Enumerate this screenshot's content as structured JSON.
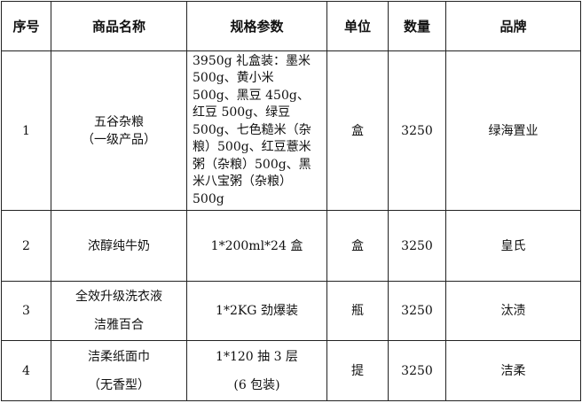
{
  "table": {
    "headers": [
      "序号",
      "商品名称",
      "规格参数",
      "单位",
      "数量",
      "品牌"
    ],
    "rows": [
      {
        "no": "1",
        "name": [
          "五谷杂粮",
          "（一级产品）"
        ],
        "spec": "3950g 礼盒装：墨米 500g、黄小米 500g、黑豆 450g、红豆 500g、绿豆 500g、七色糙米（杂粮）500g、红豆薏米粥（杂粮）500g、黑米八宝粥（杂粮）500g",
        "unit": "盒",
        "qty": "3250",
        "brand": "绿海置业"
      },
      {
        "no": "2",
        "name": [
          "浓醇纯牛奶"
        ],
        "spec": "1*200ml*24 盒",
        "unit": "盒",
        "qty": "3250",
        "brand": "皇氏"
      },
      {
        "no": "3",
        "name": [
          "全效升级洗衣液",
          "洁雅百合"
        ],
        "spec": "1*2KG 劲爆装",
        "unit": "瓶",
        "qty": "3250",
        "brand": "汰渍"
      },
      {
        "no": "4",
        "name": [
          "洁柔纸面巾",
          "（无香型）"
        ],
        "spec": [
          "1*120 抽 3 层",
          "(6 包装)"
        ],
        "unit": "提",
        "qty": "3250",
        "brand": "洁柔"
      }
    ]
  }
}
